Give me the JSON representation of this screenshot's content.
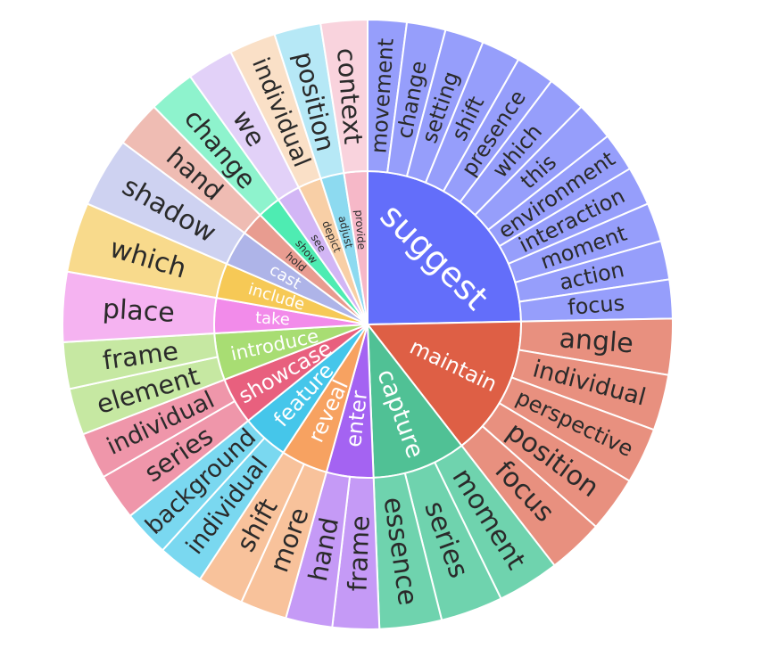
{
  "chart_data": {
    "type": "sunburst",
    "verbs": [
      {
        "name": "suggest",
        "color": "#636efa",
        "child_color": "#969efb",
        "weight": 10,
        "children": [
          "movement",
          "change",
          "setting",
          "shift",
          "presence",
          "which",
          "this",
          "environment",
          "interaction",
          "moment",
          "action",
          "focus"
        ]
      },
      {
        "name": "maintain",
        "color": "#de5f45",
        "child_color": "#e8907f",
        "weight": 6,
        "children": [
          "angle",
          "individual",
          "perspective",
          "position",
          "focus"
        ]
      },
      {
        "name": "capture",
        "color": "#50c195",
        "child_color": "#6fd3ae",
        "weight": 4,
        "children": [
          "moment",
          "series",
          "essence"
        ]
      },
      {
        "name": "enter",
        "color": "#a463f2",
        "child_color": "#c59af6",
        "weight": 2,
        "children": [
          "frame",
          "hand"
        ]
      },
      {
        "name": "reveal",
        "color": "#f7a261",
        "child_color": "#f8c29b",
        "weight": 2,
        "children": [
          "more",
          "shift"
        ]
      },
      {
        "name": "feature",
        "color": "#45c6ea",
        "child_color": "#7ad8f0",
        "weight": 2,
        "children": [
          "individual",
          "background"
        ]
      },
      {
        "name": "showcase",
        "color": "#e8607e",
        "child_color": "#ef96aa",
        "weight": 2,
        "children": [
          "series",
          "individual"
        ]
      },
      {
        "name": "introduce",
        "color": "#a8dd73",
        "child_color": "#c6e8a2",
        "weight": 2,
        "children": [
          "element",
          "frame"
        ]
      },
      {
        "name": "take",
        "color": "#f28bea",
        "child_color": "#f5b3f1",
        "weight": 1.5,
        "children": [
          "place"
        ]
      },
      {
        "name": "include",
        "color": "#f6c956",
        "child_color": "#f8da8c",
        "weight": 1.5,
        "children": [
          "which"
        ]
      },
      {
        "name": "cast",
        "color": "#aeb4e8",
        "child_color": "#ced2f1",
        "weight": 1.5,
        "children": [
          "shadow"
        ]
      },
      {
        "name": "hold",
        "color": "#e89c90",
        "child_color": "#efbcb3",
        "weight": 1,
        "children": [
          "hand"
        ]
      },
      {
        "name": "show",
        "color": "#4eecb2",
        "child_color": "#8ef3cd",
        "weight": 1,
        "children": [
          "change"
        ]
      },
      {
        "name": "see",
        "color": "#d2b6f5",
        "child_color": "#e2d1f8",
        "weight": 1,
        "children": [
          "we"
        ]
      },
      {
        "name": "depict",
        "color": "#f8cfa6",
        "child_color": "#fae0c7",
        "weight": 1,
        "children": [
          "individual"
        ]
      },
      {
        "name": "adjust",
        "color": "#8ddaf0",
        "child_color": "#b6e8f6",
        "weight": 1,
        "children": [
          "position"
        ]
      },
      {
        "name": "provide",
        "color": "#f6b8c8",
        "child_color": "#f9d3dd",
        "weight": 1,
        "children": [
          "context"
        ]
      }
    ]
  }
}
